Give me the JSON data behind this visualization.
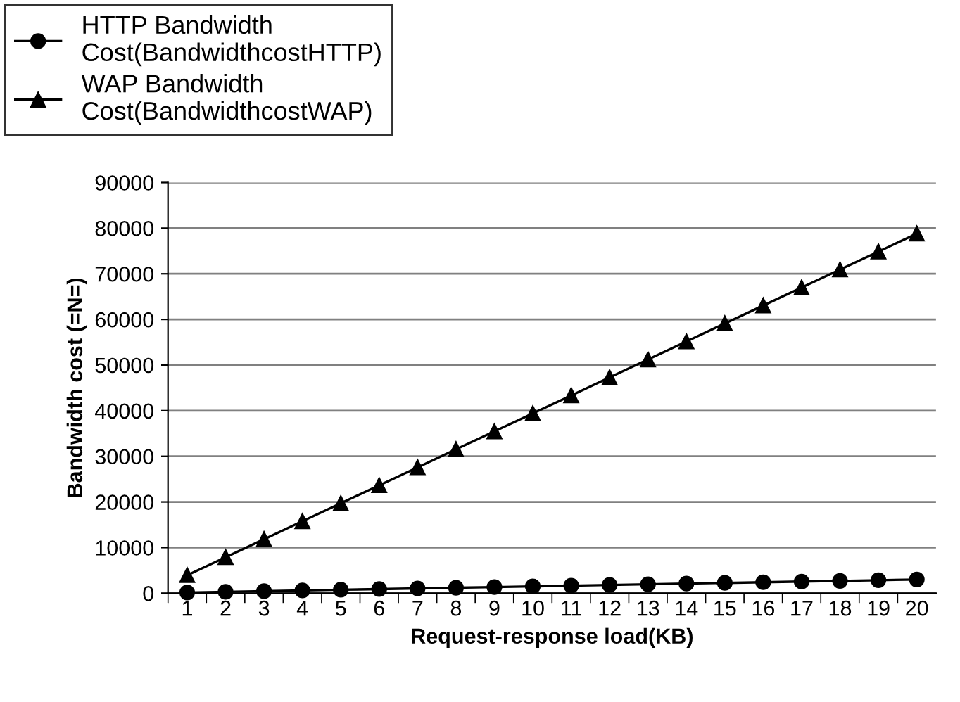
{
  "chart_data": {
    "type": "line",
    "xlabel": "Request-response load(KB)",
    "ylabel": "Bandwidth cost (=N=)",
    "categories": [
      "1",
      "2",
      "3",
      "4",
      "5",
      "6",
      "7",
      "8",
      "9",
      "10",
      "11",
      "12",
      "13",
      "14",
      "15",
      "16",
      "17",
      "18",
      "19",
      "20"
    ],
    "series": [
      {
        "name": "HTTP Bandwidth\nCost(BandwidthcostHTTP)",
        "color": "#000000",
        "marker": "circle",
        "values": [
          150,
          300,
          450,
          600,
          750,
          900,
          1050,
          1200,
          1350,
          1500,
          1650,
          1800,
          1950,
          2100,
          2250,
          2400,
          2550,
          2700,
          2850,
          3000
        ]
      },
      {
        "name": "WAP Bandwidth\nCost(BandwidthcostWAP)",
        "color": "#000000",
        "marker": "triangle",
        "values": [
          3940,
          7880,
          11820,
          15760,
          19700,
          23640,
          27580,
          31520,
          35460,
          39400,
          43340,
          47280,
          51220,
          55160,
          59100,
          63040,
          66980,
          70920,
          74860,
          78800
        ]
      }
    ],
    "ylim": [
      0,
      90000
    ],
    "yticks": [
      0,
      10000,
      20000,
      30000,
      40000,
      50000,
      60000,
      70000,
      80000,
      90000
    ],
    "grid": "y",
    "legend": "top left",
    "line_style": "solid"
  }
}
